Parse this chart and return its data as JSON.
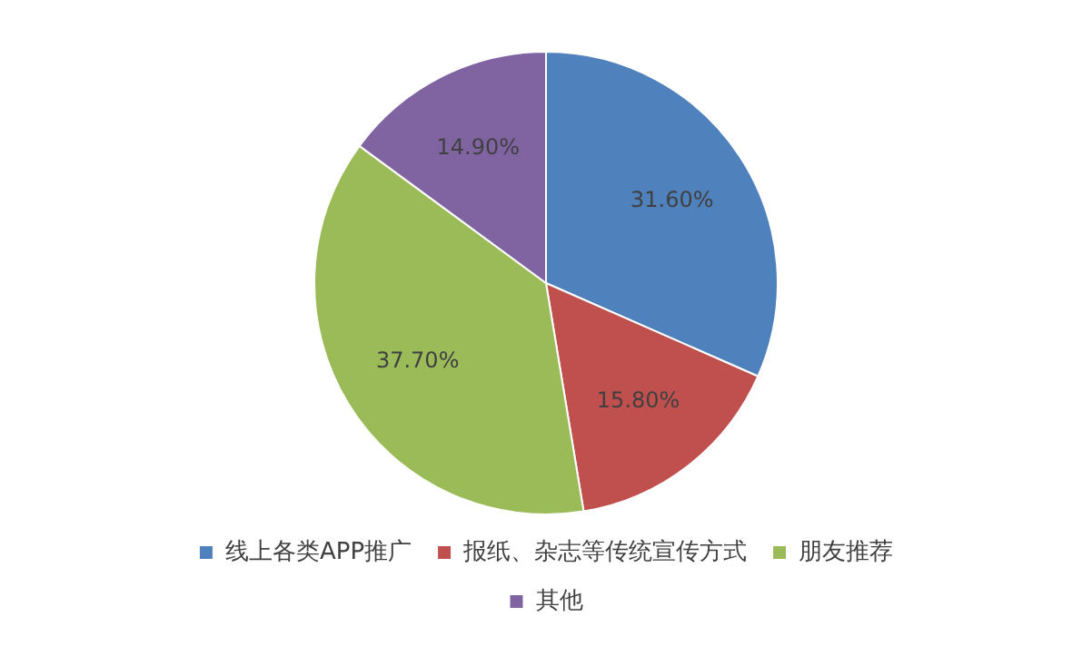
{
  "chart_data": {
    "type": "pie",
    "categories": [
      "线上各类APP推广",
      "报纸、杂志等传统宣传方式",
      "朋友推荐",
      "其他"
    ],
    "values": [
      31.6,
      15.8,
      37.7,
      14.9
    ],
    "value_labels": [
      "31.60%",
      "15.80%",
      "37.70%",
      "14.90%"
    ],
    "colors": [
      "#4f81bd",
      "#c0504d",
      "#9bbb59",
      "#8064a2"
    ],
    "legend": "bottom"
  }
}
